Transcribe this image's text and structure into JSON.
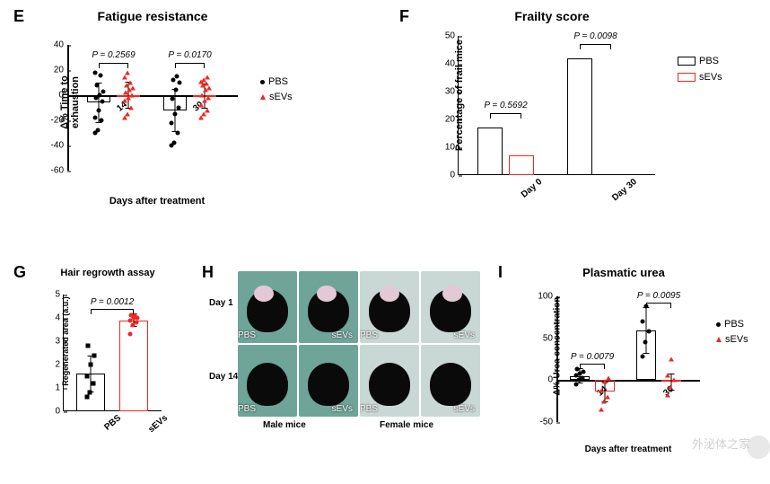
{
  "panels": {
    "E": {
      "letter": "E",
      "title": "Fatigue resistance",
      "title_fontsize": 14,
      "ylabel": "Δ% Time to exhaustion",
      "xlabel": "Days after treatment",
      "label_fontsize": 11,
      "type": "scatter_with_box",
      "ylim": [
        -60,
        40
      ],
      "ytick_step": 20,
      "yticks": [
        -60,
        -40,
        -20,
        0,
        20,
        40
      ],
      "categories": [
        "14",
        "30"
      ],
      "groups": [
        "PBS",
        "sEVs"
      ],
      "pvalues": [
        "P = 0.2569",
        "P = 0.0170"
      ],
      "box_means": {
        "14": {
          "PBS": -6,
          "sEVs": 0
        },
        "30": {
          "PBS": -12,
          "sEVs": -1
        }
      },
      "box_sd": {
        "14": {
          "PBS": 16,
          "sEVs": 11
        },
        "30": {
          "PBS": 17,
          "sEVs": 10
        }
      },
      "points": {
        "14": {
          "PBS": [
            -30,
            -28,
            -20,
            -18,
            -12,
            -5,
            -2,
            0,
            3,
            8,
            16,
            18
          ],
          "sEVs": [
            -18,
            -15,
            -10,
            -4,
            -2,
            0,
            2,
            4,
            6,
            8,
            10,
            14,
            18
          ]
        },
        "30": {
          "PBS": [
            -40,
            -38,
            -30,
            -22,
            -15,
            -10,
            -3,
            4,
            10,
            12,
            15
          ],
          "sEVs": [
            -18,
            -15,
            -12,
            -8,
            -4,
            -2,
            0,
            4,
            6,
            8,
            9,
            11,
            12,
            14
          ]
        }
      },
      "legend": [
        {
          "label": "PBS",
          "marker": "circle",
          "color": "#000000"
        },
        {
          "label": "sEVs",
          "marker": "triangle",
          "color": "#ee2824"
        }
      ],
      "colors": {
        "PBS": "#000000",
        "sEVs": "#ee2824"
      },
      "background_color": "#ffffff"
    },
    "F": {
      "letter": "F",
      "title": "Frailty score",
      "title_fontsize": 14,
      "ylabel": "Percentage of frail mice",
      "label_fontsize": 11,
      "type": "bar",
      "ylim": [
        0,
        50
      ],
      "ytick_step": 10,
      "yticks": [
        0,
        10,
        20,
        30,
        40,
        50
      ],
      "categories": [
        "Day 0",
        "Day 30"
      ],
      "groups": [
        "PBS",
        "sEVs"
      ],
      "values": {
        "Day 0": {
          "PBS": 17,
          "sEVs": 7
        },
        "Day 30": {
          "PBS": 42,
          "sEVs": 0
        }
      },
      "pvalues": [
        "P = 0.5692",
        "P = 0.0098"
      ],
      "bar_colors": {
        "PBS": "#000000",
        "sEVs": "#ee2824"
      },
      "bar_fill": "transparent",
      "bar_border_width": 1.5,
      "legend": [
        {
          "label": "PBS",
          "box_border": "#000000"
        },
        {
          "label": "sEVs",
          "box_border": "#ee2824"
        }
      ]
    },
    "G": {
      "letter": "G",
      "title": "Hair regrowth assay",
      "title_fontsize": 11,
      "ylabel": "Regenerated area (a.u.)",
      "label_fontsize": 9,
      "type": "bar_with_points",
      "ylim": [
        0,
        5
      ],
      "ytick_step": 1,
      "yticks": [
        0,
        1,
        2,
        3,
        4,
        5
      ],
      "categories": [
        "PBS",
        "sEVs"
      ],
      "values": {
        "PBS": 1.6,
        "sEVs": 3.9
      },
      "sd": {
        "PBS": 0.8,
        "sEVs": 0.3
      },
      "points": {
        "PBS": [
          0.6,
          0.8,
          1.2,
          1.5,
          2.0,
          2.4,
          2.8
        ],
        "sEVs": [
          3.3,
          3.7,
          3.8,
          3.9,
          4.0,
          4.0,
          4.1,
          4.1
        ]
      },
      "pvalue": "P = 0.0012",
      "bar_colors": {
        "PBS": "#000000",
        "sEVs": "#ee2824"
      },
      "marker": {
        "PBS": "square",
        "sEVs": "circle"
      },
      "marker_colors": {
        "PBS": "#000000",
        "sEVs": "#ee2824"
      }
    },
    "H": {
      "letter": "H",
      "type": "photo_grid",
      "rows": [
        "Day 1",
        "Day 14"
      ],
      "cols_labels": [
        "Male mice",
        "Female mice"
      ],
      "cell_labels": [
        "PBS",
        "sEVs",
        "PBS",
        "sEVs"
      ],
      "show_patch_row": "Day 1",
      "bg": "#7aa9a0"
    },
    "I": {
      "letter": "I",
      "title": "Plasmatic urea",
      "title_fontsize": 13,
      "ylabel": "Δ% Urea concentration",
      "xlabel": "Days after treatment",
      "label_fontsize": 10,
      "type": "bar_with_points",
      "ylim": [
        -50,
        100
      ],
      "ytick_step": 50,
      "yticks": [
        -50,
        0,
        50,
        100
      ],
      "categories": [
        "14",
        "30"
      ],
      "groups": [
        "PBS",
        "sEVs"
      ],
      "values": {
        "14": {
          "PBS": 5,
          "sEVs": -14
        },
        "30": {
          "PBS": 59,
          "sEVs": -2
        }
      },
      "sd": {
        "14": {
          "PBS": 9,
          "sEVs": 12
        },
        "30": {
          "PBS": 28,
          "sEVs": 10
        }
      },
      "points": {
        "14": {
          "PBS": [
            -5,
            0,
            3,
            6,
            8,
            10,
            13
          ],
          "sEVs": [
            -35,
            -25,
            -20,
            -12,
            -2,
            3
          ]
        },
        "30": {
          "PBS": [
            28,
            45,
            58,
            70,
            88
          ],
          "sEVs": [
            -18,
            -8,
            0,
            6,
            25
          ]
        }
      },
      "pvalues": [
        "P = 0.0079",
        "P = 0.0095"
      ],
      "colors": {
        "PBS": "#000000",
        "sEVs": "#ee2824"
      },
      "legend": [
        {
          "label": "PBS",
          "marker": "circle",
          "color": "#000000"
        },
        {
          "label": "sEVs",
          "marker": "triangle",
          "color": "#ee2824"
        }
      ]
    }
  },
  "watermark": "外泌体之家"
}
